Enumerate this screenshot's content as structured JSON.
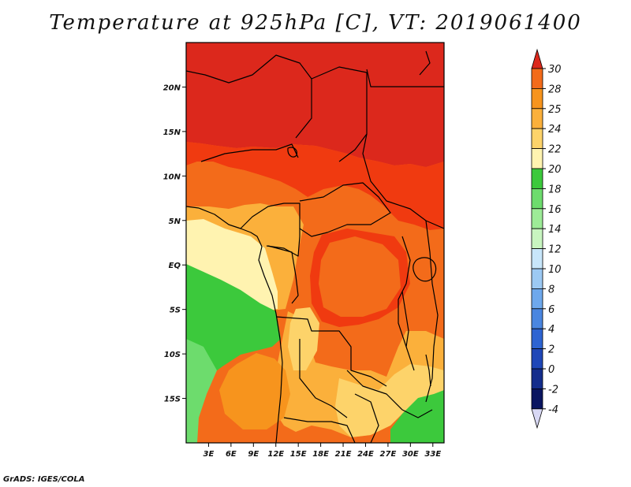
{
  "title": "Temperature at 925hPa [C], VT: 2019061400",
  "credit": "GrADS: IGES/COLA",
  "map": {
    "projection": "latlon",
    "lon_range": [
      0,
      34.5
    ],
    "lat_range": [
      -20,
      25
    ],
    "lat_ticks": [
      {
        "value": 20,
        "label": "20N"
      },
      {
        "value": 15,
        "label": "15N"
      },
      {
        "value": 10,
        "label": "10N"
      },
      {
        "value": 5,
        "label": "5N"
      },
      {
        "value": 0,
        "label": "EQ"
      },
      {
        "value": -5,
        "label": "5S"
      },
      {
        "value": -10,
        "label": "10S"
      },
      {
        "value": -15,
        "label": "15S"
      }
    ],
    "lon_ticks": [
      {
        "value": 3,
        "label": "3E"
      },
      {
        "value": 6,
        "label": "6E"
      },
      {
        "value": 9,
        "label": "9E"
      },
      {
        "value": 12,
        "label": "12E"
      },
      {
        "value": 15,
        "label": "15E"
      },
      {
        "value": 18,
        "label": "18E"
      },
      {
        "value": 21,
        "label": "21E"
      },
      {
        "value": 24,
        "label": "24E"
      },
      {
        "value": 27,
        "label": "27E"
      },
      {
        "value": 30,
        "label": "30E"
      },
      {
        "value": 33,
        "label": "33E"
      }
    ]
  },
  "colorbar": {
    "levels": [
      {
        "label": "30",
        "color": "#f03a10"
      },
      {
        "label": "28",
        "color": "#f36b1a"
      },
      {
        "label": "25",
        "color": "#f7941d"
      },
      {
        "label": "24",
        "color": "#fbb03b"
      },
      {
        "label": "22",
        "color": "#fdd36a"
      },
      {
        "label": "20",
        "color": "#fff3b0"
      },
      {
        "label": "18",
        "color": "#3cc93c"
      },
      {
        "label": "16",
        "color": "#6ddc6d"
      },
      {
        "label": "14",
        "color": "#9deb97"
      },
      {
        "label": "12",
        "color": "#c8f5c0"
      },
      {
        "label": "10",
        "color": "#c8e6fa"
      },
      {
        "label": "8",
        "color": "#9cc9f3"
      },
      {
        "label": "6",
        "color": "#6ea8ec"
      },
      {
        "label": "4",
        "color": "#4a86e0"
      },
      {
        "label": "2",
        "color": "#2e64d2"
      },
      {
        "label": "0",
        "color": "#1f47b8"
      },
      {
        "label": "-2",
        "color": "#142d8c"
      },
      {
        "label": "-4",
        "color": "#0a1560"
      }
    ],
    "top_arrow_color": "#dc281c",
    "bottom_arrow_color": "#d8d8f4"
  },
  "colors": {
    "t_gt30": "#dc281c",
    "t_28_30": "#f03a10",
    "t_25_28": "#f36b1a",
    "t_24_25": "#f7941d",
    "t_22_24": "#fbb03b",
    "t_20_22": "#fdd36a",
    "t_18_20": "#fff3b0",
    "t_16_18": "#3cc93c",
    "t_14_16": "#6ddc6d",
    "t_12_14": "#9deb97"
  }
}
